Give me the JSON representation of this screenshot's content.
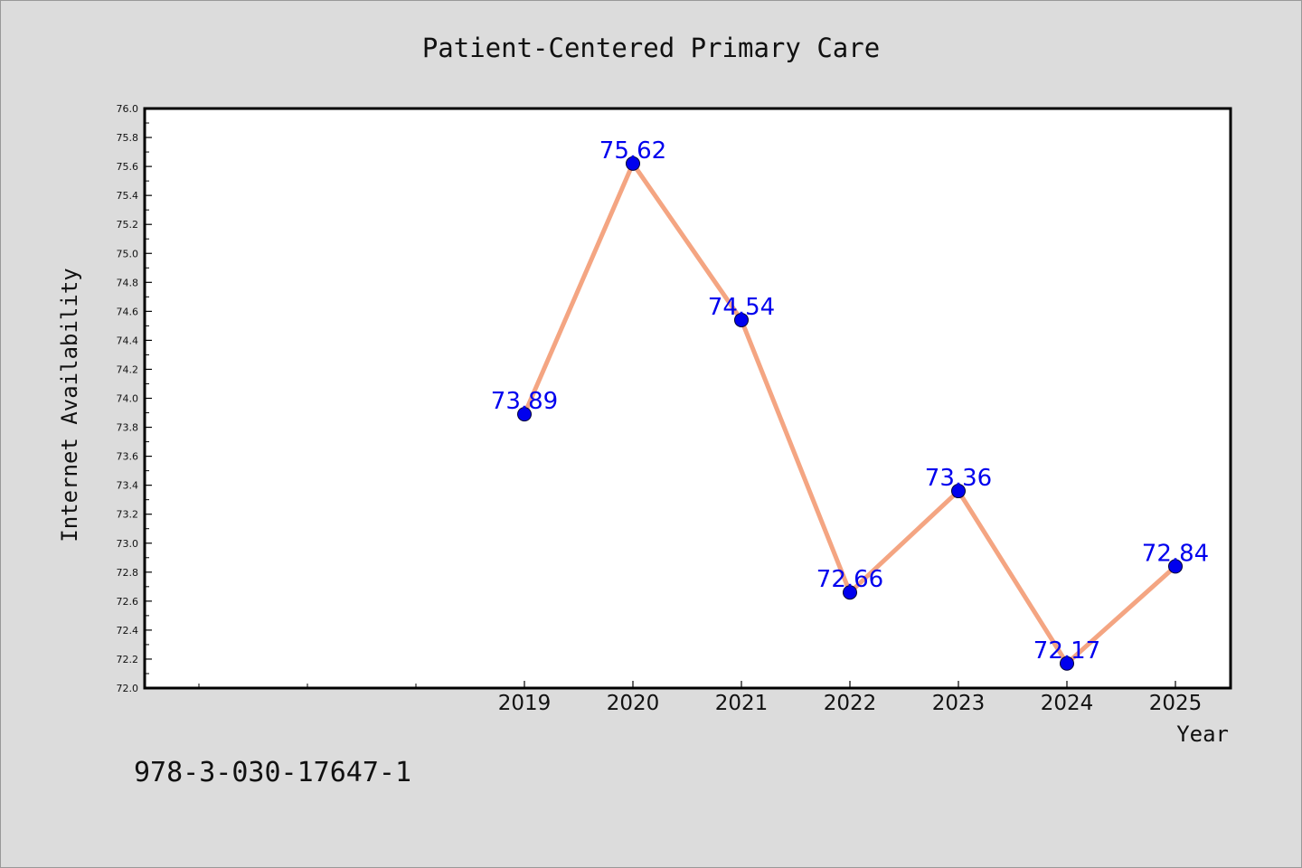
{
  "chart_data": {
    "type": "line",
    "title": "Patient-Centered Primary Care",
    "xlabel": "Year",
    "ylabel": "Internet Availability",
    "x": [
      "2019",
      "2020",
      "2021",
      "2022",
      "2023",
      "2024",
      "2025"
    ],
    "values": [
      73.89,
      75.62,
      74.54,
      72.66,
      73.36,
      72.17,
      72.84
    ],
    "value_labels": [
      "73.89",
      "75.62",
      "74.54",
      "72.66",
      "73.36",
      "72.17",
      "72.84"
    ],
    "ylim": [
      72.0,
      76.0
    ],
    "yticks": [
      "72.0",
      "72.2",
      "72.4",
      "72.6",
      "72.8",
      "73.0",
      "73.2",
      "73.4",
      "73.6",
      "73.8",
      "74.0",
      "74.2",
      "74.4",
      "74.6",
      "74.8",
      "75.0",
      "75.2",
      "75.4",
      "75.6",
      "75.8",
      "76.0"
    ],
    "grid": false,
    "colors": {
      "line": "#f4a582",
      "marker": "#0000ee",
      "label": "#0000ee",
      "background": "#dcdcdc",
      "plot_background": "#ffffff"
    }
  },
  "footer_text": "978-3-030-17647-1"
}
